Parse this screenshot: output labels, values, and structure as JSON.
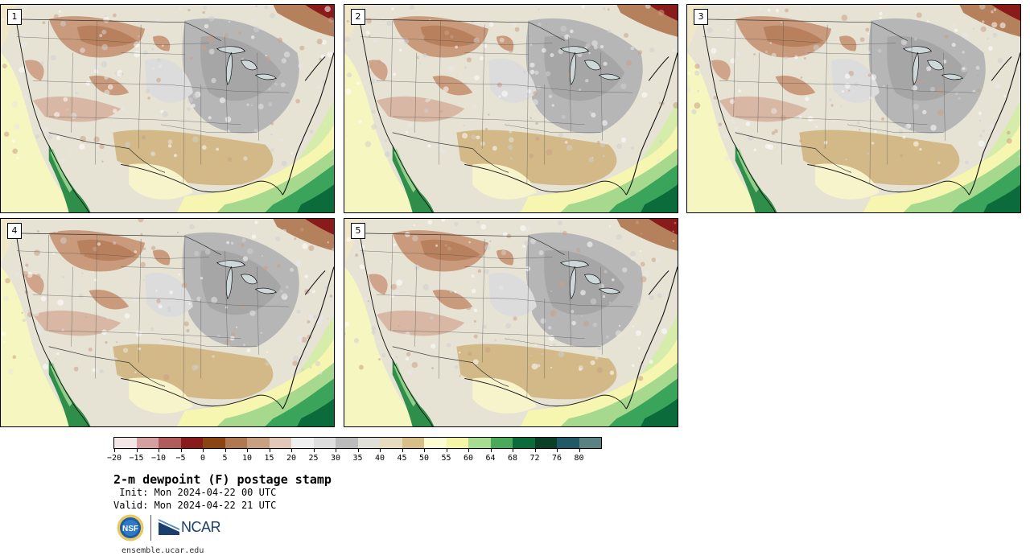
{
  "panels": [
    {
      "label": "1"
    },
    {
      "label": "2"
    },
    {
      "label": "3"
    },
    {
      "label": "4"
    },
    {
      "label": "5"
    }
  ],
  "colorbar": {
    "colors": [
      "#f3e6e6",
      "#d4a0a0",
      "#b05c5c",
      "#8a1b1b",
      "#8b4513",
      "#b07850",
      "#c8a080",
      "#e2c8b8",
      "#eeeeee",
      "#dddddd",
      "#bbbbbb",
      "#e0e0d8",
      "#e8dcc0",
      "#d8bf88",
      "#fcfcd4",
      "#f5f5a8",
      "#a8dc90",
      "#4aaa5a",
      "#0b6b3a",
      "#0a3f28",
      "#1f5a66",
      "#5a8282"
    ],
    "tick_labels": [
      "−20",
      "−15",
      "−10",
      "−5",
      "0",
      "5",
      "10",
      "15",
      "20",
      "25",
      "30",
      "35",
      "40",
      "45",
      "50",
      "55",
      "60",
      "64",
      "68",
      "72",
      "76",
      "80"
    ]
  },
  "title": "2-m dewpoint (F) postage stamp",
  "init_line": " Init: Mon 2024-04-22 00 UTC",
  "valid_line": "Valid: Mon 2024-04-22 21 UTC",
  "logos": {
    "nsf_text": "NSF",
    "ncar_text": "NCAR"
  },
  "website": "ensemble.ucar.edu"
}
